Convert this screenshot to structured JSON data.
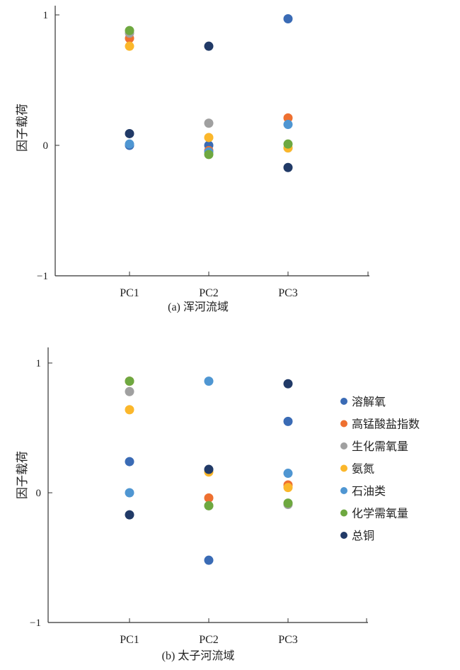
{
  "chart_data": [
    {
      "type": "scatter",
      "title": "(a) 浑河流域",
      "ylabel": "因子载荷",
      "categories": [
        "PC1",
        "PC2",
        "PC3"
      ],
      "yticks": [
        "1",
        "0",
        "−1"
      ],
      "ylim": [
        -1,
        1
      ],
      "series": [
        {
          "name": "溶解氧",
          "values": [
            0.0,
            0.0,
            0.97
          ]
        },
        {
          "name": "高锰酸盐指数",
          "values": [
            0.82,
            -0.04,
            0.21
          ]
        },
        {
          "name": "生化需氧量",
          "values": [
            0.86,
            0.17,
            -0.02
          ]
        },
        {
          "name": "氨氮",
          "values": [
            0.76,
            0.06,
            -0.02
          ]
        },
        {
          "name": "石油类",
          "values": [
            0.01,
            -0.05,
            0.16
          ]
        },
        {
          "name": "化学需氧量",
          "values": [
            0.88,
            -0.07,
            0.01
          ]
        },
        {
          "name": "总铜",
          "values": [
            0.09,
            0.76,
            -0.17
          ]
        }
      ]
    },
    {
      "type": "scatter",
      "title": "(b) 太子河流域",
      "ylabel": "因子载荷",
      "categories": [
        "PC1",
        "PC2",
        "PC3"
      ],
      "yticks": [
        "1",
        "0",
        "−1"
      ],
      "ylim": [
        -1,
        1
      ],
      "legend_position": "right",
      "series": [
        {
          "name": "溶解氧",
          "values": [
            0.24,
            -0.52,
            0.55
          ]
        },
        {
          "name": "高锰酸盐指数",
          "values": [
            0.86,
            -0.04,
            0.06
          ]
        },
        {
          "name": "生化需氧量",
          "values": [
            0.78,
            -0.1,
            -0.09
          ]
        },
        {
          "name": "氨氮",
          "values": [
            0.64,
            0.16,
            0.04
          ]
        },
        {
          "name": "石油类",
          "values": [
            0.0,
            0.86,
            0.15
          ]
        },
        {
          "name": "化学需氧量",
          "values": [
            0.86,
            -0.1,
            -0.08
          ]
        },
        {
          "name": "总铜",
          "values": [
            -0.17,
            0.18,
            0.84
          ]
        }
      ]
    }
  ],
  "colors": [
    "#3a6bb5",
    "#ee7030",
    "#a0a0a0",
    "#fbb72b",
    "#4f96d2",
    "#6ea840",
    "#213a67"
  ]
}
